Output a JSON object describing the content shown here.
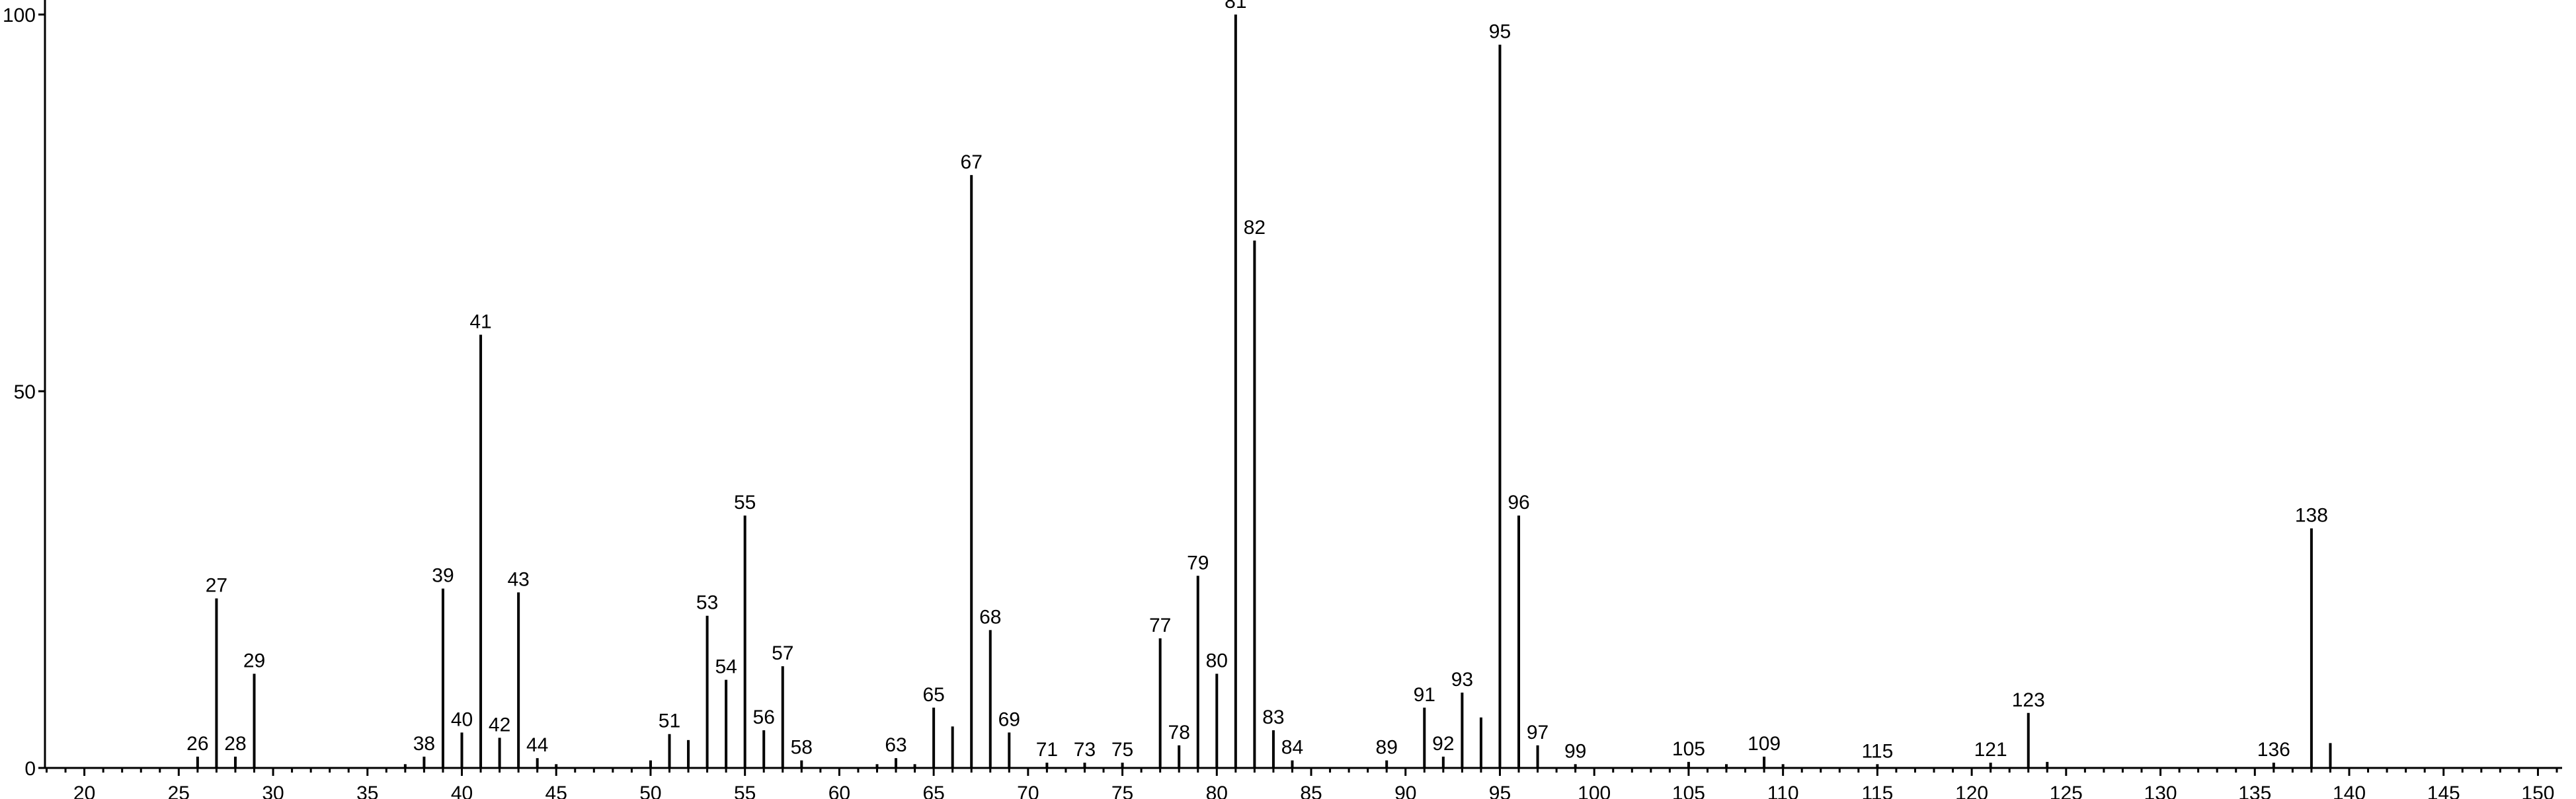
{
  "chart_data": {
    "type": "bar",
    "title": "",
    "xlabel": "",
    "ylabel": "",
    "xlim": [
      18,
      153
    ],
    "ylim": [
      0,
      100
    ],
    "x_ticks": [
      20,
      25,
      30,
      35,
      40,
      45,
      50,
      55,
      60,
      65,
      70,
      75,
      80,
      85,
      90,
      95,
      100,
      105,
      110,
      115,
      120,
      125,
      130,
      135,
      140,
      145,
      150
    ],
    "y_ticks": [
      0,
      50,
      100
    ],
    "grid": false,
    "legend": "none",
    "color": "#000000",
    "peaks": [
      {
        "mz": 26,
        "intensity": 1.5,
        "label": "26"
      },
      {
        "mz": 27,
        "intensity": 22.5,
        "label": "27"
      },
      {
        "mz": 28,
        "intensity": 1.5,
        "label": "28"
      },
      {
        "mz": 29,
        "intensity": 12.5,
        "label": "29"
      },
      {
        "mz": 37,
        "intensity": 0.5,
        "label": ""
      },
      {
        "mz": 38,
        "intensity": 1.5,
        "label": "38"
      },
      {
        "mz": 39,
        "intensity": 23.8,
        "label": "39"
      },
      {
        "mz": 40,
        "intensity": 4.7,
        "label": "40"
      },
      {
        "mz": 41,
        "intensity": 57.5,
        "label": "41"
      },
      {
        "mz": 42,
        "intensity": 4.0,
        "label": "42"
      },
      {
        "mz": 43,
        "intensity": 23.3,
        "label": "43"
      },
      {
        "mz": 44,
        "intensity": 1.3,
        "label": "44"
      },
      {
        "mz": 45,
        "intensity": 0.5,
        "label": ""
      },
      {
        "mz": 50,
        "intensity": 1.0,
        "label": ""
      },
      {
        "mz": 51,
        "intensity": 4.5,
        "label": "51"
      },
      {
        "mz": 52,
        "intensity": 3.7,
        "label": ""
      },
      {
        "mz": 53,
        "intensity": 20.2,
        "label": "53"
      },
      {
        "mz": 54,
        "intensity": 11.7,
        "label": "54"
      },
      {
        "mz": 55,
        "intensity": 33.5,
        "label": "55"
      },
      {
        "mz": 56,
        "intensity": 5.0,
        "label": "56"
      },
      {
        "mz": 57,
        "intensity": 13.5,
        "label": "57"
      },
      {
        "mz": 58,
        "intensity": 1.0,
        "label": "58"
      },
      {
        "mz": 62,
        "intensity": 0.5,
        "label": ""
      },
      {
        "mz": 63,
        "intensity": 1.3,
        "label": "63"
      },
      {
        "mz": 64,
        "intensity": 0.5,
        "label": ""
      },
      {
        "mz": 65,
        "intensity": 8.0,
        "label": "65"
      },
      {
        "mz": 66,
        "intensity": 5.5,
        "label": ""
      },
      {
        "mz": 67,
        "intensity": 78.7,
        "label": "67"
      },
      {
        "mz": 68,
        "intensity": 18.3,
        "label": "68"
      },
      {
        "mz": 69,
        "intensity": 4.7,
        "label": "69"
      },
      {
        "mz": 71,
        "intensity": 0.7,
        "label": "71"
      },
      {
        "mz": 73,
        "intensity": 0.7,
        "label": "73"
      },
      {
        "mz": 75,
        "intensity": 0.7,
        "label": "75"
      },
      {
        "mz": 77,
        "intensity": 17.2,
        "label": "77"
      },
      {
        "mz": 78,
        "intensity": 3.0,
        "label": "78"
      },
      {
        "mz": 79,
        "intensity": 25.5,
        "label": "79"
      },
      {
        "mz": 80,
        "intensity": 12.5,
        "label": "80"
      },
      {
        "mz": 81,
        "intensity": 100,
        "label": "81"
      },
      {
        "mz": 82,
        "intensity": 70.0,
        "label": "82"
      },
      {
        "mz": 83,
        "intensity": 5.0,
        "label": "83"
      },
      {
        "mz": 84,
        "intensity": 1.0,
        "label": "84"
      },
      {
        "mz": 89,
        "intensity": 1.0,
        "label": "89"
      },
      {
        "mz": 91,
        "intensity": 8.0,
        "label": "91"
      },
      {
        "mz": 92,
        "intensity": 1.5,
        "label": "92"
      },
      {
        "mz": 93,
        "intensity": 10.0,
        "label": "93"
      },
      {
        "mz": 94,
        "intensity": 6.7,
        "label": ""
      },
      {
        "mz": 95,
        "intensity": 96.0,
        "label": "95"
      },
      {
        "mz": 96,
        "intensity": 33.5,
        "label": "96"
      },
      {
        "mz": 97,
        "intensity": 3.0,
        "label": "97"
      },
      {
        "mz": 99,
        "intensity": 0.5,
        "label": "99"
      },
      {
        "mz": 105,
        "intensity": 0.8,
        "label": "105"
      },
      {
        "mz": 107,
        "intensity": 0.5,
        "label": ""
      },
      {
        "mz": 109,
        "intensity": 1.5,
        "label": "109"
      },
      {
        "mz": 110,
        "intensity": 0.5,
        "label": ""
      },
      {
        "mz": 115,
        "intensity": 0.5,
        "label": "115"
      },
      {
        "mz": 121,
        "intensity": 0.7,
        "label": "121"
      },
      {
        "mz": 123,
        "intensity": 7.3,
        "label": "123"
      },
      {
        "mz": 124,
        "intensity": 0.8,
        "label": ""
      },
      {
        "mz": 136,
        "intensity": 0.7,
        "label": "136"
      },
      {
        "mz": 138,
        "intensity": 31.8,
        "label": "138"
      },
      {
        "mz": 139,
        "intensity": 3.3,
        "label": ""
      }
    ]
  }
}
